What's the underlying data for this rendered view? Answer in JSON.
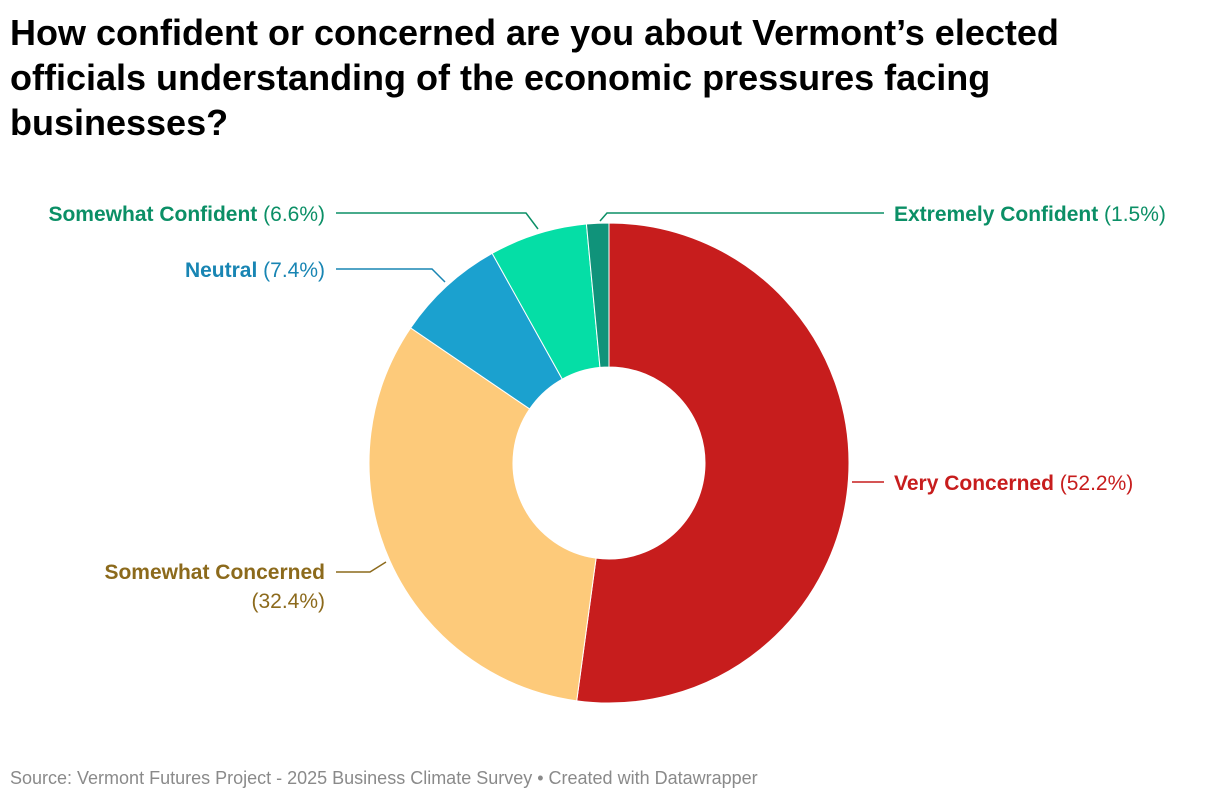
{
  "title": "How confident or concerned are you about Vermont’s elected officials understanding of the economic pressures facing businesses?",
  "source": "Source: Vermont Futures Project - 2025 Business Climate Survey • Created with Datawrapper",
  "chart_data": {
    "type": "pie",
    "donut": true,
    "slices": [
      {
        "label": "Very Concerned",
        "value": 52.2,
        "display": "(52.2%)",
        "color": "#c71d1d"
      },
      {
        "label": "Somewhat Concerned",
        "value": 32.4,
        "display": "(32.4%)",
        "color": "#fdca7a",
        "label_color": "#8c6a1c"
      },
      {
        "label": "Neutral",
        "value": 7.4,
        "display": "(7.4%)",
        "color": "#1ba1cf",
        "label_color": "#1885b3"
      },
      {
        "label": "Somewhat Confident",
        "value": 6.6,
        "display": "(6.6%)",
        "color": "#05dea6",
        "label_color": "#0b8f66"
      },
      {
        "label": "Extremely Confident",
        "value": 1.5,
        "display": "(1.5%)",
        "color": "#10937a",
        "label_color": "#0b8f66"
      }
    ]
  }
}
